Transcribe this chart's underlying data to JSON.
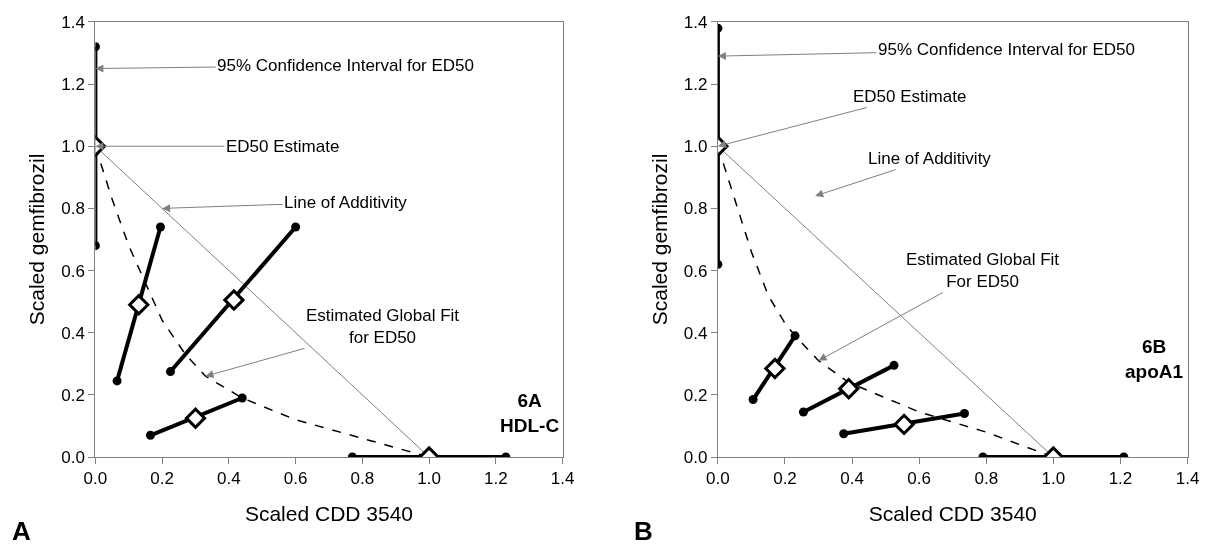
{
  "chart_data": [
    {
      "type": "line",
      "xlabel": "Scaled CDD 3540",
      "ylabel": "Scaled gemfibrozil",
      "xlim": [
        0,
        1.4
      ],
      "ylim": [
        0,
        1.4
      ],
      "xticks": [
        {
          "value": 0,
          "label": "0.0"
        },
        {
          "value": 0.2,
          "label": "0.2"
        },
        {
          "value": 0.4,
          "label": "0.4"
        },
        {
          "value": 0.6,
          "label": "0.6"
        },
        {
          "value": 0.8,
          "label": "0.8"
        },
        {
          "value": 1.0,
          "label": "1.0"
        },
        {
          "value": 1.2,
          "label": "1.2"
        },
        {
          "value": 1.4,
          "label": "1.4"
        }
      ],
      "yticks": [
        {
          "value": 0,
          "label": "0.0"
        },
        {
          "value": 0.2,
          "label": "0.2"
        },
        {
          "value": 0.4,
          "label": "0.4"
        },
        {
          "value": 0.6,
          "label": "0.6"
        },
        {
          "value": 0.8,
          "label": "0.8"
        },
        {
          "value": 1.0,
          "label": "1.0"
        },
        {
          "value": 1.2,
          "label": "1.2"
        },
        {
          "value": 1.4,
          "label": "1.4"
        }
      ],
      "grid": false,
      "series": [
        {
          "color": "#808080",
          "marker": "none",
          "x": [
            0,
            1
          ],
          "values": [
            1,
            0
          ]
        },
        {
          "color": "#000000",
          "marker": "none",
          "line_style": "dashed",
          "x": [
            0,
            0.05,
            0.1,
            0.15,
            0.2,
            0.27,
            0.33,
            0.44,
            0.6,
            0.8,
            1.0
          ],
          "values": [
            1,
            0.83,
            0.68,
            0.56,
            0.44,
            0.33,
            0.26,
            0.19,
            0.12,
            0.06,
            0
          ]
        },
        {
          "color": "#000000",
          "marker": "circle",
          "x": [
            0,
            0
          ],
          "values": [
            0.68,
            1.32
          ]
        },
        {
          "color": "#000000",
          "marker": "circle",
          "x": [
            0.065,
            0.195
          ],
          "values": [
            0.245,
            0.74
          ]
        },
        {
          "color": "#000000",
          "marker": "circle",
          "x": [
            0.225,
            0.6
          ],
          "values": [
            0.275,
            0.74
          ]
        },
        {
          "color": "#000000",
          "marker": "circle",
          "x": [
            0.165,
            0.44
          ],
          "values": [
            0.07,
            0.19
          ]
        },
        {
          "color": "#000000",
          "marker": "circle",
          "x": [
            0.77,
            1.23
          ],
          "values": [
            0,
            0
          ]
        },
        {
          "type": "scatter",
          "color": "#000000",
          "marker": "diamond",
          "x": [
            0,
            0.13,
            0.415,
            0.3,
            1.0
          ],
          "values": [
            1,
            0.49,
            0.505,
            0.125,
            0
          ]
        }
      ],
      "annotations": [
        {
          "text": "95% Confidence Interval for ED50",
          "x": 0,
          "y": 1.25
        },
        {
          "text": "ED50 Estimate",
          "x": 0,
          "y": 1.0
        },
        {
          "text": "Line of Additivity",
          "x": 0.2,
          "y": 0.8
        },
        {
          "text": "Estimated Global Fit\nfor ED50",
          "x": 0.33,
          "y": 0.26
        },
        "6A\nHDL-C",
        "A"
      ]
    },
    {
      "type": "line",
      "xlabel": "Scaled CDD 3540",
      "ylabel": "Scaled gemfibrozil",
      "xlim": [
        0,
        1.4
      ],
      "ylim": [
        0,
        1.4
      ],
      "xticks": [
        {
          "value": 0,
          "label": "0.0"
        },
        {
          "value": 0.2,
          "label": "0.2"
        },
        {
          "value": 0.4,
          "label": "0.4"
        },
        {
          "value": 0.6,
          "label": "0.6"
        },
        {
          "value": 0.8,
          "label": "0.8"
        },
        {
          "value": 1.0,
          "label": "1.0"
        },
        {
          "value": 1.2,
          "label": "1.2"
        },
        {
          "value": 1.4,
          "label": "1.4"
        }
      ],
      "yticks": [
        {
          "value": 0,
          "label": "0.0"
        },
        {
          "value": 0.2,
          "label": "0.2"
        },
        {
          "value": 0.4,
          "label": "0.4"
        },
        {
          "value": 0.6,
          "label": "0.6"
        },
        {
          "value": 0.8,
          "label": "0.8"
        },
        {
          "value": 1.0,
          "label": "1.0"
        },
        {
          "value": 1.2,
          "label": "1.2"
        },
        {
          "value": 1.4,
          "label": "1.4"
        }
      ],
      "grid": false,
      "series": [
        {
          "color": "#808080",
          "marker": "none",
          "x": [
            0,
            1
          ],
          "values": [
            1,
            0
          ]
        },
        {
          "color": "#000000",
          "marker": "none",
          "line_style": "dashed",
          "x": [
            0,
            0.05,
            0.1,
            0.15,
            0.2,
            0.23,
            0.3,
            0.39,
            0.5,
            0.6,
            0.8,
            1.0
          ],
          "values": [
            1,
            0.83,
            0.66,
            0.52,
            0.43,
            0.39,
            0.31,
            0.24,
            0.19,
            0.145,
            0.08,
            0
          ]
        },
        {
          "color": "#000000",
          "marker": "circle",
          "x": [
            0,
            0
          ],
          "values": [
            0.62,
            1.38
          ]
        },
        {
          "color": "#000000",
          "marker": "circle",
          "x": [
            0.105,
            0.23
          ],
          "values": [
            0.185,
            0.39
          ]
        },
        {
          "color": "#000000",
          "marker": "circle",
          "x": [
            0.255,
            0.525
          ],
          "values": [
            0.145,
            0.295
          ]
        },
        {
          "color": "#000000",
          "marker": "circle",
          "x": [
            0.375,
            0.735
          ],
          "values": [
            0.075,
            0.14
          ]
        },
        {
          "color": "#000000",
          "marker": "circle",
          "x": [
            0.79,
            1.21
          ],
          "values": [
            0,
            0
          ]
        },
        {
          "type": "scatter",
          "color": "#000000",
          "marker": "diamond",
          "x": [
            0,
            0.17,
            0.39,
            0.555,
            1.0
          ],
          "values": [
            1,
            0.285,
            0.22,
            0.105,
            0
          ]
        }
      ],
      "annotations": [
        {
          "text": "95% Confidence Interval for ED50",
          "x": 0,
          "y": 1.29
        },
        {
          "text": "ED50 Estimate",
          "x": 0,
          "y": 1.0
        },
        "Line of Additivity",
        {
          "text": "Estimated Global Fit\nFor ED50",
          "x": 0.3,
          "y": 0.31
        },
        "6B\napoA1",
        "B"
      ]
    }
  ]
}
